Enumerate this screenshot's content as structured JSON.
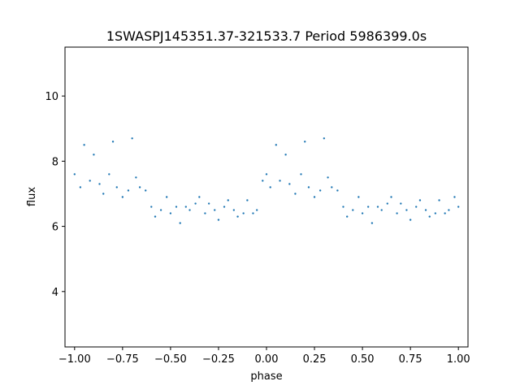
{
  "chart_data": {
    "type": "scatter",
    "title": "1SWASPJ145351.37-321533.7 Period 5986399.0s",
    "xlabel": "phase",
    "ylabel": "flux",
    "xlim": [
      -1.05,
      1.05
    ],
    "ylim": [
      2.3,
      11.5
    ],
    "xticks": [
      -1.0,
      -0.75,
      -0.5,
      -0.25,
      0.0,
      0.25,
      0.5,
      0.75,
      1.0
    ],
    "xtick_labels": [
      "−1.00",
      "−0.75",
      "−0.50",
      "−0.25",
      "0.00",
      "0.25",
      "0.50",
      "0.75",
      "1.00"
    ],
    "yticks": [
      4,
      6,
      8,
      10
    ],
    "ytick_labels": [
      "4",
      "6",
      "8",
      "10"
    ],
    "grid": false,
    "point_color": "#1f77b4",
    "series": [
      {
        "x": [
          -1.0,
          -0.97,
          -0.95,
          -0.92,
          -0.9,
          -0.87,
          -0.85,
          -0.82,
          -0.8,
          -0.78,
          -0.75,
          -0.72,
          -0.7,
          -0.68,
          -0.66,
          -0.63,
          -0.6,
          -0.58,
          -0.55,
          -0.52,
          -0.5,
          -0.47,
          -0.45,
          -0.42,
          -0.4,
          -0.37,
          -0.35,
          -0.32,
          -0.3,
          -0.27,
          -0.25,
          -0.22,
          -0.2,
          -0.17,
          -0.15,
          -0.12,
          -0.1,
          -0.07,
          -0.05,
          -0.02,
          0.0,
          0.02,
          0.05,
          0.07,
          0.1,
          0.12,
          0.15,
          0.18,
          0.2,
          0.22,
          0.25,
          0.28,
          0.3,
          0.32,
          0.34,
          0.37,
          0.4,
          0.42,
          0.45,
          0.48,
          0.5,
          0.53,
          0.55,
          0.58,
          0.6,
          0.63,
          0.65,
          0.68,
          0.7,
          0.73,
          0.75,
          0.78,
          0.8,
          0.83,
          0.85,
          0.88,
          0.9,
          0.93,
          0.95,
          0.98,
          1.0
        ],
        "y": [
          7.6,
          7.2,
          8.5,
          7.4,
          8.2,
          7.3,
          7.0,
          7.6,
          8.6,
          7.2,
          6.9,
          7.1,
          8.7,
          7.5,
          7.2,
          7.1,
          6.6,
          6.3,
          6.5,
          6.9,
          6.4,
          6.6,
          6.1,
          6.6,
          6.5,
          6.7,
          6.9,
          6.4,
          6.7,
          6.5,
          6.2,
          6.6,
          6.8,
          6.5,
          6.3,
          6.4,
          6.8,
          6.4,
          6.5,
          7.4,
          7.6,
          7.2,
          8.5,
          7.4,
          8.2,
          7.3,
          7.0,
          7.6,
          8.6,
          7.2,
          6.9,
          7.1,
          8.7,
          7.5,
          7.2,
          7.1,
          6.6,
          6.3,
          6.5,
          6.9,
          6.4,
          6.6,
          6.1,
          6.6,
          6.5,
          6.7,
          6.9,
          6.4,
          6.7,
          6.5,
          6.2,
          6.6,
          6.8,
          6.5,
          6.3,
          6.4,
          6.8,
          6.4,
          6.5,
          6.9,
          6.6
        ]
      }
    ]
  }
}
